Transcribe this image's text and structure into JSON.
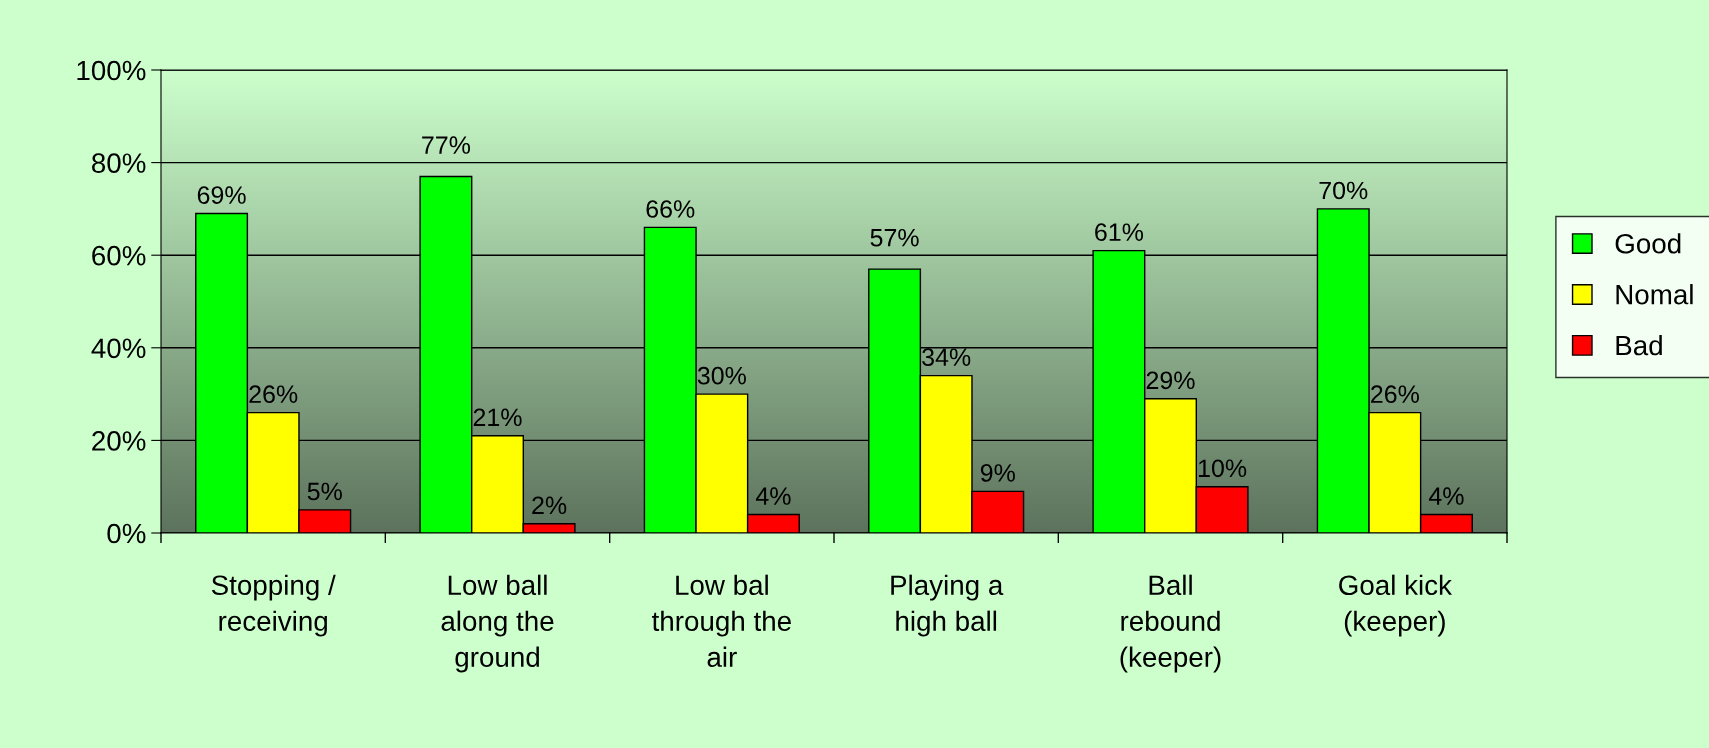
{
  "chart_data": {
    "type": "bar",
    "categories": [
      "Stopping /\nreceiving",
      "Low ball\nalong the\nground",
      "Low bal\nthrough the\nair",
      "Playing a\nhigh ball",
      "Ball\nrebound\n(keeper)",
      "Goal kick\n(keeper)"
    ],
    "series": [
      {
        "name": "Good",
        "color": "#00ff00",
        "values": [
          69,
          77,
          66,
          57,
          61,
          70
        ],
        "value_labels": [
          "69%",
          "77%",
          "66%",
          "57%",
          "61%",
          "70%"
        ]
      },
      {
        "name": "Nomal",
        "color": "#ffff00",
        "values": [
          26,
          21,
          30,
          34,
          29,
          26
        ],
        "value_labels": [
          "26%",
          "21%",
          "30%",
          "34%",
          "29%",
          "26%"
        ]
      },
      {
        "name": "Bad",
        "color": "#ff0000",
        "values": [
          5,
          2,
          4,
          9,
          10,
          4
        ],
        "value_labels": [
          "5%",
          "2%",
          "4%",
          "9%",
          "10%",
          "4%"
        ]
      }
    ],
    "ylim": [
      0,
      100
    ],
    "yticks": [
      {
        "value": 0,
        "label": "0%"
      },
      {
        "value": 20,
        "label": "20%"
      },
      {
        "value": 40,
        "label": "40%"
      },
      {
        "value": 60,
        "label": "60%"
      },
      {
        "value": 80,
        "label": "80%"
      },
      {
        "value": 100,
        "label": "100%"
      }
    ],
    "grid": "y",
    "legend": "right"
  }
}
